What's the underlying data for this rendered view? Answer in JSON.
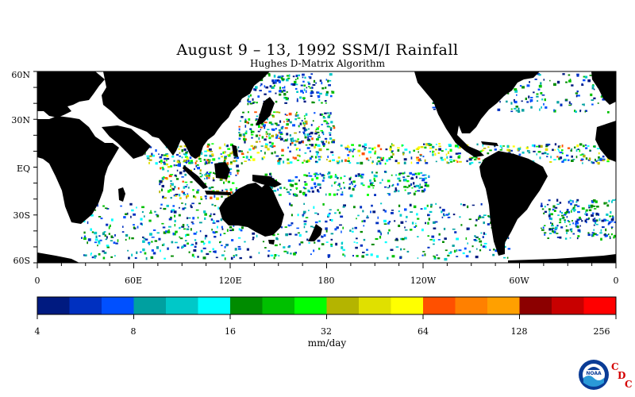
{
  "title": "August 9 – 13, 1992 SSM/I Rainfall",
  "subtitle": "Hughes D-Matrix Algorithm",
  "lat_labels": [
    "60N",
    "30N",
    "EQ",
    "30S",
    "60S"
  ],
  "lon_labels": [
    "0",
    "60E",
    "120E",
    "180",
    "120W",
    "60W",
    "0"
  ],
  "colorbar": {
    "tick_labels": [
      "4",
      "8",
      "16",
      "32",
      "64",
      "128",
      "256"
    ],
    "units": "mm/day",
    "colors": [
      "#001a80",
      "#0030c0",
      "#0050ff",
      "#00a0a0",
      "#00c8c8",
      "#00ffff",
      "#008c00",
      "#00c000",
      "#00ff00",
      "#b4b400",
      "#e0e000",
      "#ffff00",
      "#ff5000",
      "#ff8000",
      "#ffa000",
      "#8c0000",
      "#c80000",
      "#ff0000"
    ]
  },
  "logo": {
    "text": "NOAA",
    "letters": [
      "C",
      "D",
      "C"
    ],
    "colors": {
      "outer": "#0a3c96",
      "wave": "#2a9ad8",
      "letters": "#d40000"
    }
  },
  "land_color": "#000000",
  "ocean_color": "#ffffff"
}
